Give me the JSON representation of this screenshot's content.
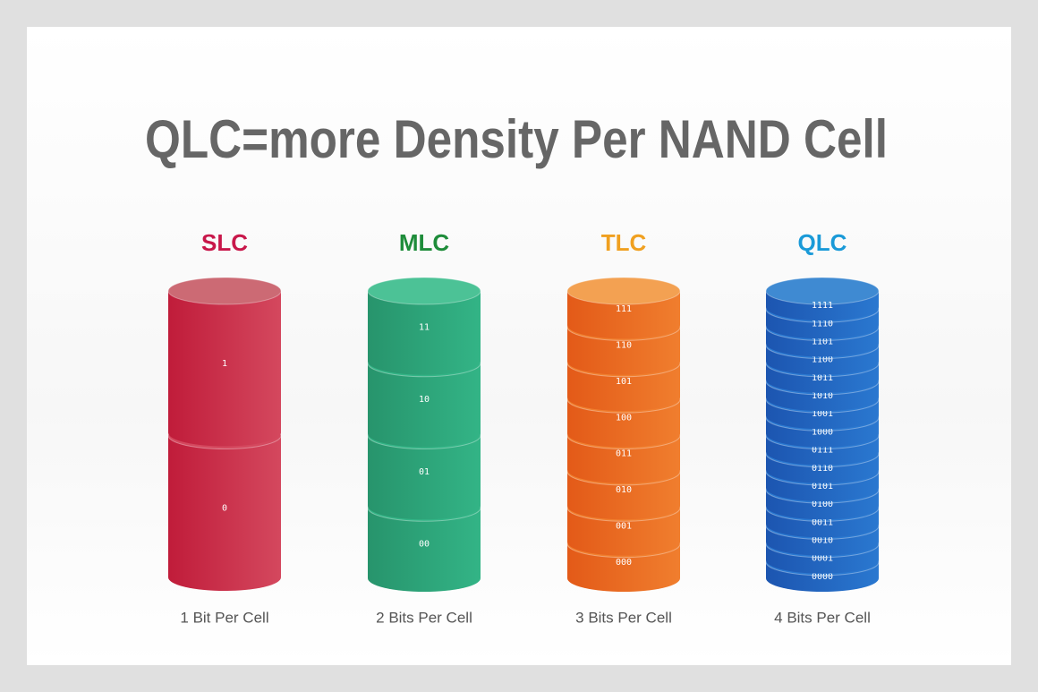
{
  "title": "QLC=more Density Per NAND Cell",
  "columns": [
    {
      "label": "SLC",
      "caption": "1 Bit Per Cell",
      "levels": [
        "1",
        "0"
      ]
    },
    {
      "label": "MLC",
      "caption": "2 Bits Per Cell",
      "levels": [
        "11",
        "10",
        "01",
        "00"
      ]
    },
    {
      "label": "TLC",
      "caption": "3 Bits Per Cell",
      "levels": [
        "111",
        "110",
        "101",
        "100",
        "011",
        "010",
        "001",
        "000"
      ]
    },
    {
      "label": "QLC",
      "caption": "4 Bits Per Cell",
      "levels": [
        "1111",
        "1110",
        "1101",
        "1100",
        "1011",
        "1010",
        "1001",
        "1000",
        "0111",
        "0110",
        "0101",
        "0100",
        "0011",
        "0010",
        "0001",
        "0000"
      ]
    }
  ]
}
